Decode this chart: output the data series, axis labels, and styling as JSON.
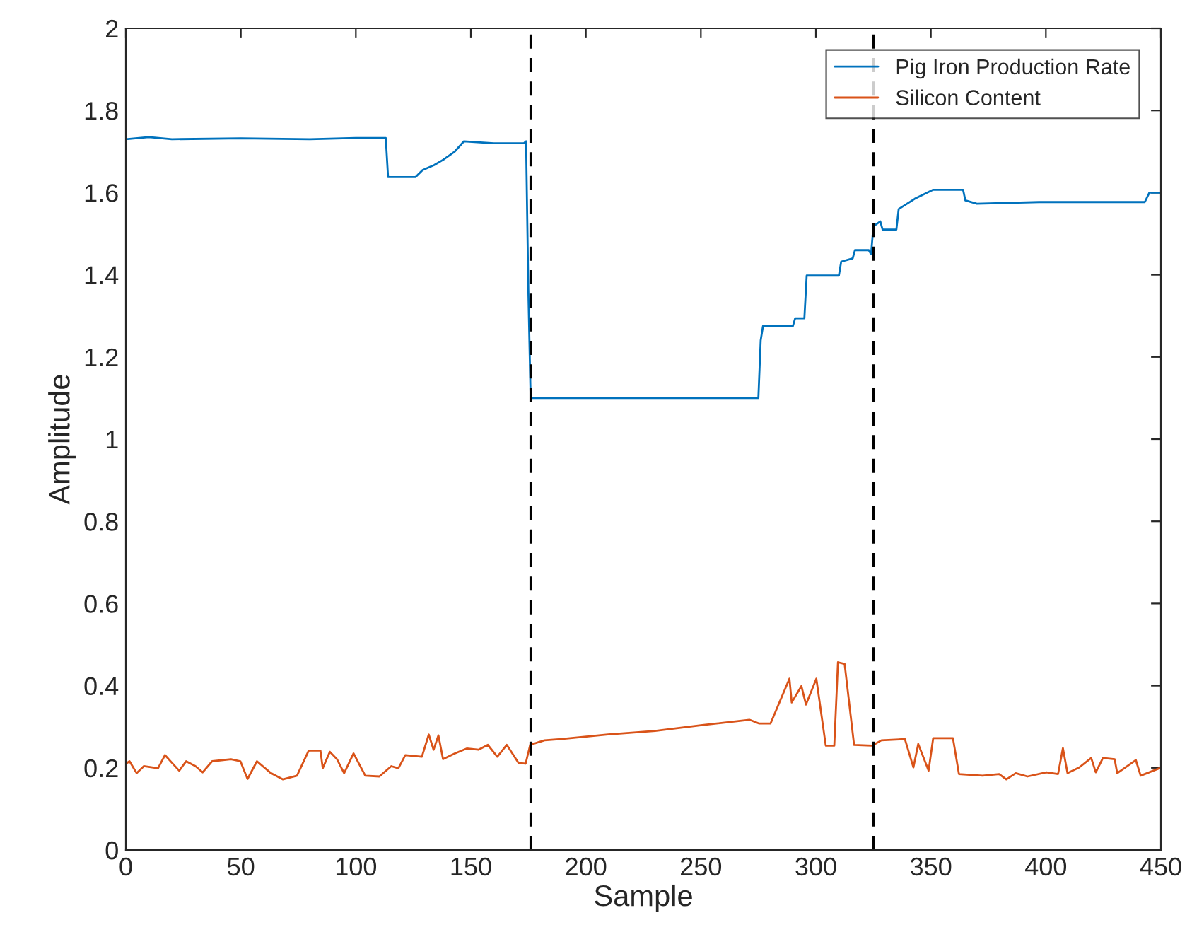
{
  "chart_data": {
    "type": "line",
    "xlabel": "Sample",
    "ylabel": "Amplitude",
    "xlim": [
      0,
      450
    ],
    "xticks": [
      0,
      50,
      100,
      150,
      200,
      250,
      300,
      350,
      400,
      450
    ],
    "ylim": [
      0,
      2
    ],
    "yticks": [
      0,
      0.2,
      0.4,
      0.6,
      0.8,
      1,
      1.2,
      1.4,
      1.6,
      1.8,
      2
    ],
    "grid": false,
    "legend": "top right",
    "line_style": "solid",
    "marker": "none",
    "ref_lines": [
      {
        "axis": "x",
        "value": 176,
        "color": "#000000",
        "line_style": "dashed"
      },
      {
        "axis": "x",
        "value": 325,
        "color": "#000000",
        "line_style": "dashed"
      }
    ],
    "series": [
      {
        "name": "Pig Iron Production Rate",
        "color": "#0072bd",
        "x": [
          0,
          10,
          20,
          50,
          80,
          100,
          113,
          114,
          126,
          129,
          134,
          138,
          143,
          147,
          160,
          173,
          174,
          175,
          176,
          275,
          276,
          277,
          290,
          291,
          295,
          296,
          310,
          311,
          316,
          317,
          323,
          324,
          325,
          328,
          329,
          335,
          336,
          343,
          351,
          364,
          365,
          370,
          397,
          420,
          443,
          445,
          450
        ],
        "values": [
          1.73,
          1.735,
          1.73,
          1.732,
          1.73,
          1.733,
          1.733,
          1.638,
          1.638,
          1.655,
          1.667,
          1.68,
          1.7,
          1.725,
          1.72,
          1.72,
          1.725,
          1.36,
          1.1,
          1.1,
          1.24,
          1.275,
          1.275,
          1.294,
          1.294,
          1.398,
          1.398,
          1.432,
          1.44,
          1.46,
          1.46,
          1.45,
          1.518,
          1.53,
          1.51,
          1.51,
          1.56,
          1.585,
          1.607,
          1.607,
          1.581,
          1.573,
          1.577,
          1.577,
          1.577,
          1.6,
          1.6
        ]
      },
      {
        "name": "Silicon Content",
        "color": "#d95319",
        "x": [
          0,
          1.6,
          4.7,
          7.8,
          14.0,
          17.0,
          20.1,
          23.2,
          26.2,
          30.3,
          33.4,
          37.5,
          45.7,
          49.8,
          52.9,
          57.0,
          63.1,
          68.2,
          74.4,
          79.5,
          84.6,
          85.6,
          88.7,
          91.8,
          94.9,
          99.0,
          104.1,
          110.2,
          115.4,
          118.5,
          121.5,
          128.7,
          131.7,
          133.8,
          135.9,
          137.9,
          143.0,
          148.2,
          153.3,
          157.4,
          161.5,
          165.6,
          170.7,
          173.8,
          175.8,
          182.0,
          189.2,
          209.6,
          230.1,
          250.6,
          271.1,
          275.2,
          280.3,
          288.5,
          289.5,
          293.7,
          295.7,
          300.2,
          304.3,
          308.0,
          309.6,
          312.5,
          316.6,
          324.4,
          328.5,
          338.7,
          342.4,
          344.5,
          349.0,
          351.0,
          359.6,
          362.2,
          372.5,
          379.7,
          382.8,
          386.9,
          392.0,
          400.2,
          405.3,
          407.4,
          409.4,
          414.5,
          419.7,
          421.7,
          424.8,
          429.9,
          431.0,
          439.1,
          441.2,
          449.4
        ],
        "values": [
          0.21,
          0.216,
          0.187,
          0.204,
          0.199,
          0.231,
          0.212,
          0.193,
          0.216,
          0.204,
          0.189,
          0.216,
          0.221,
          0.216,
          0.173,
          0.216,
          0.187,
          0.172,
          0.181,
          0.242,
          0.242,
          0.199,
          0.239,
          0.221,
          0.187,
          0.235,
          0.181,
          0.179,
          0.204,
          0.199,
          0.231,
          0.227,
          0.281,
          0.244,
          0.279,
          0.221,
          0.235,
          0.247,
          0.244,
          0.256,
          0.227,
          0.256,
          0.212,
          0.21,
          0.256,
          0.267,
          0.27,
          0.281,
          0.29,
          0.304,
          0.317,
          0.308,
          0.308,
          0.417,
          0.359,
          0.399,
          0.354,
          0.417,
          0.254,
          0.254,
          0.457,
          0.453,
          0.256,
          0.254,
          0.267,
          0.27,
          0.201,
          0.258,
          0.193,
          0.272,
          0.272,
          0.185,
          0.181,
          0.185,
          0.172,
          0.187,
          0.179,
          0.189,
          0.185,
          0.248,
          0.187,
          0.201,
          0.224,
          0.189,
          0.224,
          0.221,
          0.187,
          0.219,
          0.181,
          0.199
        ]
      }
    ]
  }
}
